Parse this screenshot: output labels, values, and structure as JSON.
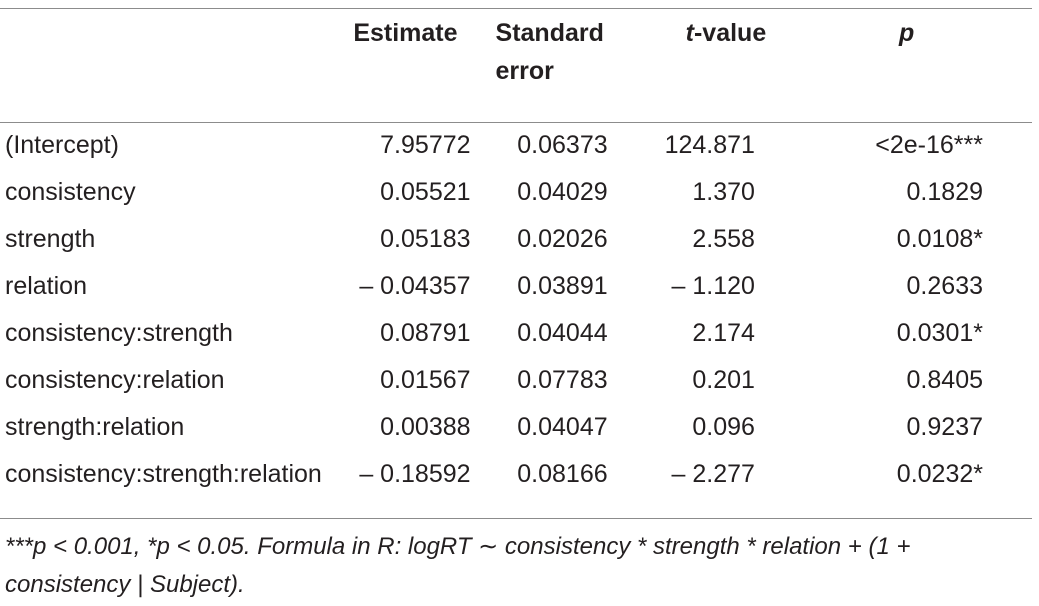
{
  "table": {
    "headers": {
      "label": "",
      "estimate": "Estimate",
      "se": "Standard error",
      "t_italic": "t",
      "t_rest": "-value",
      "p": "p"
    },
    "rows": [
      {
        "label": "(Intercept)",
        "estimate": "7.95772",
        "se": "0.06373",
        "t": "124.871",
        "p": "<2e-16***"
      },
      {
        "label": "consistency",
        "estimate": "0.05521",
        "se": "0.04029",
        "t": "1.370",
        "p": "0.1829"
      },
      {
        "label": "strength",
        "estimate": "0.05183",
        "se": "0.02026",
        "t": "2.558",
        "p": "0.0108*"
      },
      {
        "label": "relation",
        "estimate": "– 0.04357",
        "se": "0.03891",
        "t": "– 1.120",
        "p": "0.2633"
      },
      {
        "label": "consistency:strength",
        "estimate": "0.08791",
        "se": "0.04044",
        "t": "2.174",
        "p": "0.0301*"
      },
      {
        "label": "consistency:relation",
        "estimate": "0.01567",
        "se": "0.07783",
        "t": "0.201",
        "p": "0.8405"
      },
      {
        "label": "strength:relation",
        "estimate": "0.00388",
        "se": "0.04047",
        "t": "0.096",
        "p": "0.9237"
      },
      {
        "label": "consistency:strength:relation",
        "estimate": "– 0.18592",
        "se": "0.08166",
        "t": "– 2.277",
        "p": "0.0232*"
      }
    ]
  },
  "footnote": "***p < 0.001, *p < 0.05. Formula in R: logRT ∼ consistency * strength * relation + (1 + consistency | Subject)."
}
